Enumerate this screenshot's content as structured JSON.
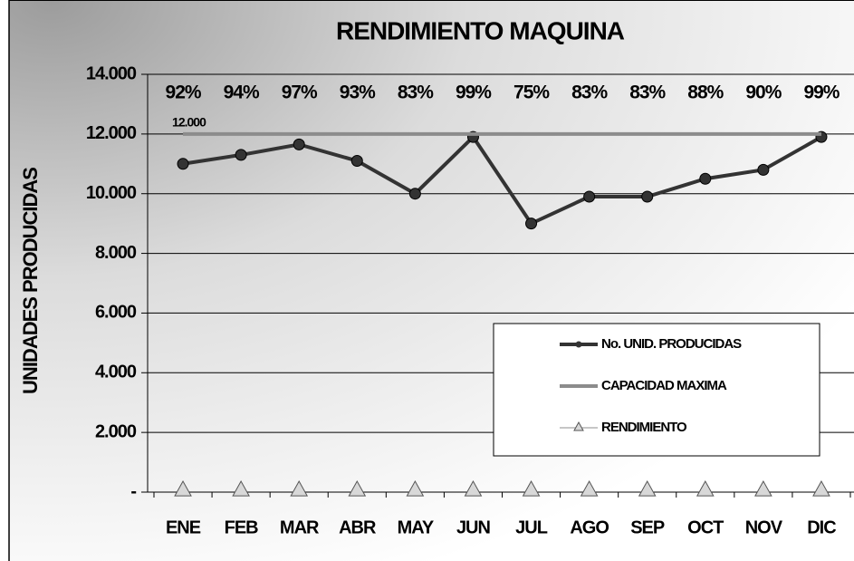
{
  "chart_data": {
    "type": "line",
    "title": "RENDIMIENTO MAQUINA",
    "y_label": "UNIDADES PRODUCIDAS",
    "categories": [
      "ENE",
      "FEB",
      "MAR",
      "ABR",
      "MAY",
      "JUN",
      "JUL",
      "AGO",
      "SEP",
      "OCT",
      "NOV",
      "DIC"
    ],
    "series": [
      {
        "name": "No. UNID. PRODUCIDAS",
        "color": "#333333",
        "marker": "circle",
        "values": [
          11000,
          11300,
          11650,
          11100,
          10000,
          11900,
          9000,
          9900,
          9900,
          10500,
          10800,
          11900
        ]
      },
      {
        "name": "CAPACIDAD MAXIMA",
        "color": "#8c8c8c",
        "marker": "none",
        "values": [
          12000,
          12000,
          12000,
          12000,
          12000,
          12000,
          12000,
          12000,
          12000,
          12000,
          12000,
          12000
        ],
        "value_labels": [
          "12.000",
          null,
          null,
          null,
          null,
          null,
          null,
          null,
          null,
          null,
          null,
          null
        ]
      },
      {
        "name": "RENDIMIENTO",
        "color": "#8c8c8c",
        "marker": "triangle",
        "values": [
          0.92,
          0.94,
          0.97,
          0.93,
          0.83,
          0.99,
          0.75,
          0.83,
          0.83,
          0.88,
          0.9,
          0.99
        ],
        "value_labels": [
          "92%",
          "94%",
          "97%",
          "93%",
          "83%",
          "99%",
          "75%",
          "83%",
          "83%",
          "88%",
          "90%",
          "99%"
        ]
      }
    ],
    "ylim": [
      0,
      14000
    ],
    "yticks": [
      {
        "value": 0,
        "label": "-"
      },
      {
        "value": 2000,
        "label": "2.000"
      },
      {
        "value": 4000,
        "label": "4.000"
      },
      {
        "value": 6000,
        "label": "6.000"
      },
      {
        "value": 8000,
        "label": "8.000"
      },
      {
        "value": 10000,
        "label": "10.000"
      },
      {
        "value": 12000,
        "label": "12.000"
      },
      {
        "value": 14000,
        "label": "14.000"
      }
    ],
    "grid": true,
    "legend": "lower right"
  }
}
